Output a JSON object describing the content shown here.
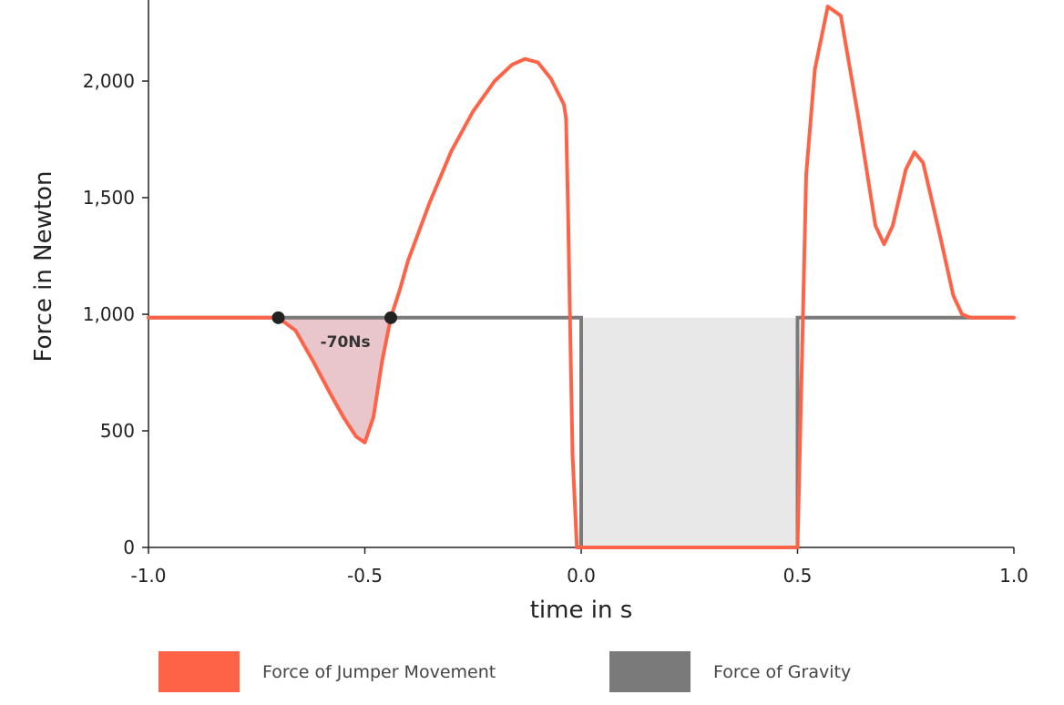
{
  "chart_data": {
    "type": "line",
    "xlabel": "time in s",
    "ylabel": "Force in Newton",
    "xlim": [
      -1.0,
      1.0
    ],
    "ylim": [
      0,
      2350
    ],
    "x_ticks": [
      "-1.0",
      "-0.5",
      "0.0",
      "0.5",
      "1.0"
    ],
    "y_ticks": [
      "0",
      "500",
      "1,000",
      "1,500",
      "2,000"
    ],
    "series": [
      {
        "name": "Force of Jumper Movement",
        "color": "#ff6347",
        "points": [
          [
            -1.0,
            985
          ],
          [
            -0.7,
            985
          ],
          [
            -0.66,
            930
          ],
          [
            -0.62,
            800
          ],
          [
            -0.58,
            660
          ],
          [
            -0.55,
            560
          ],
          [
            -0.52,
            475
          ],
          [
            -0.5,
            450
          ],
          [
            -0.48,
            560
          ],
          [
            -0.46,
            800
          ],
          [
            -0.44,
            985
          ],
          [
            -0.42,
            1100
          ],
          [
            -0.4,
            1230
          ],
          [
            -0.35,
            1480
          ],
          [
            -0.3,
            1700
          ],
          [
            -0.25,
            1870
          ],
          [
            -0.2,
            2000
          ],
          [
            -0.16,
            2070
          ],
          [
            -0.13,
            2095
          ],
          [
            -0.1,
            2080
          ],
          [
            -0.07,
            2010
          ],
          [
            -0.04,
            1900
          ],
          [
            -0.035,
            1840
          ],
          [
            -0.03,
            1400
          ],
          [
            -0.025,
            900
          ],
          [
            -0.02,
            400
          ],
          [
            -0.01,
            0
          ],
          [
            0.5,
            0
          ],
          [
            0.51,
            800
          ],
          [
            0.52,
            1600
          ],
          [
            0.54,
            2050
          ],
          [
            0.57,
            2320
          ],
          [
            0.6,
            2280
          ],
          [
            0.64,
            1850
          ],
          [
            0.68,
            1380
          ],
          [
            0.7,
            1300
          ],
          [
            0.72,
            1380
          ],
          [
            0.75,
            1620
          ],
          [
            0.77,
            1695
          ],
          [
            0.79,
            1650
          ],
          [
            0.83,
            1330
          ],
          [
            0.86,
            1080
          ],
          [
            0.88,
            1000
          ],
          [
            0.9,
            985
          ],
          [
            1.0,
            985
          ]
        ]
      },
      {
        "name": "Force of Gravity",
        "color": "#7a7a7a",
        "points": [
          [
            -1.0,
            985
          ],
          [
            0.0,
            985
          ],
          [
            0.0,
            0
          ],
          [
            0.5,
            0
          ],
          [
            0.5,
            985
          ],
          [
            1.0,
            985
          ]
        ]
      }
    ],
    "markers": [
      [
        -0.7,
        985
      ],
      [
        -0.44,
        985
      ]
    ],
    "annotation": {
      "text": "-70Ns",
      "x": -0.545,
      "y": 860
    }
  },
  "legend": {
    "items": [
      {
        "label": "Force of Jumper Movement",
        "color": "#ff6347"
      },
      {
        "label": "Force of Gravity",
        "color": "#7a7a7a"
      }
    ]
  }
}
